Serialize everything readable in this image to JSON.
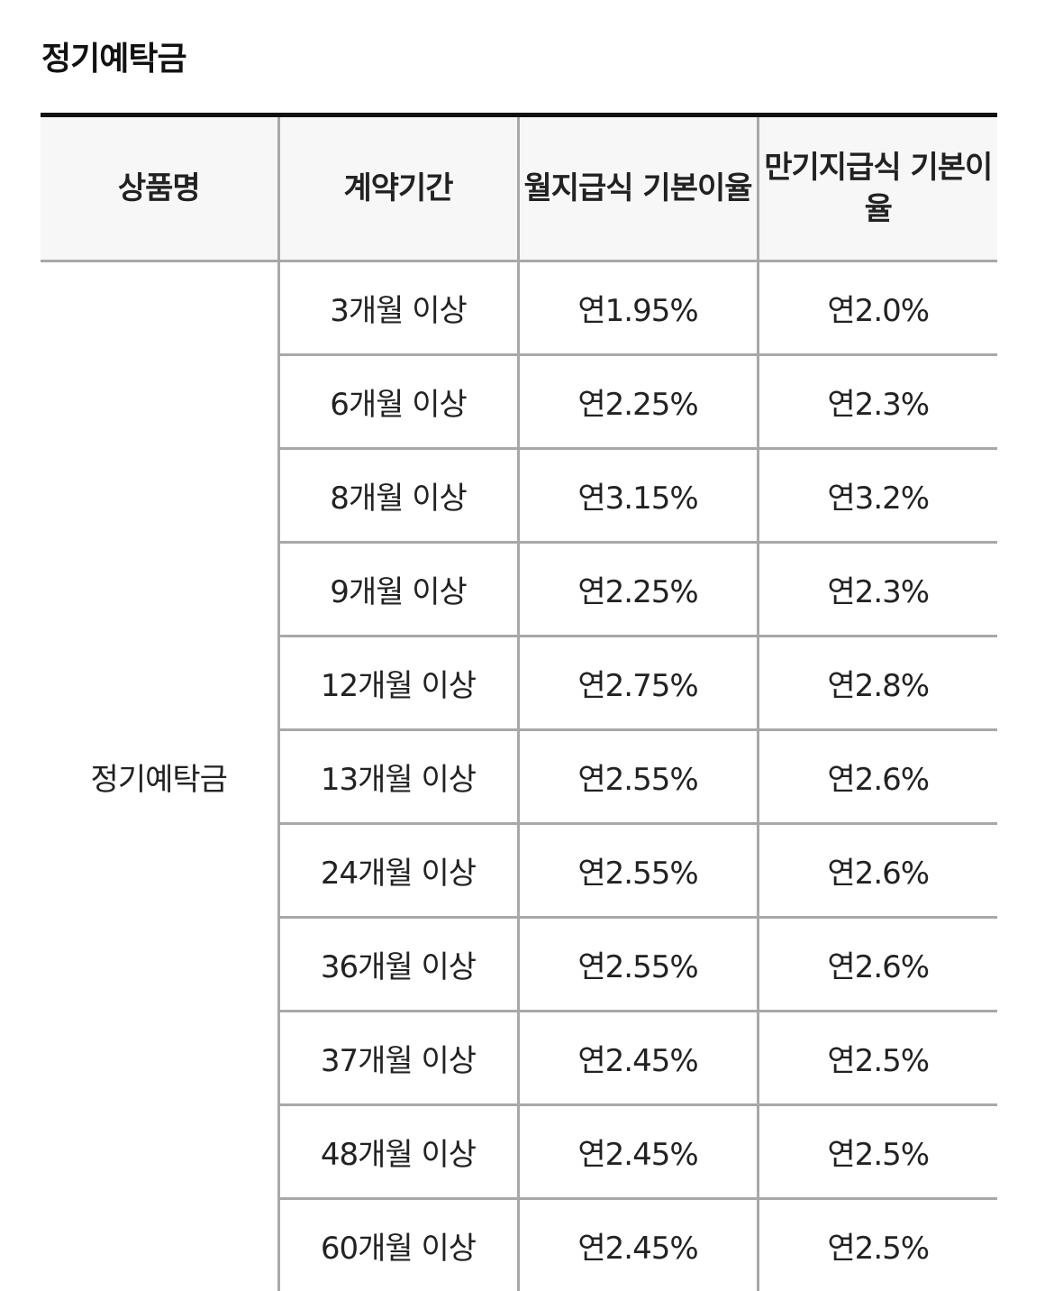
{
  "section": {
    "title": "정기예탁금"
  },
  "table": {
    "headers": [
      "상품명",
      "계약기간",
      "월지급식 기본이율",
      "만기지급식 기본이율"
    ],
    "product_name": "정기예탁금",
    "rows": [
      {
        "period": "3개월 이상",
        "monthly_rate": "연1.95%",
        "maturity_rate": "연2.0%"
      },
      {
        "period": "6개월 이상",
        "monthly_rate": "연2.25%",
        "maturity_rate": "연2.3%"
      },
      {
        "period": "8개월 이상",
        "monthly_rate": "연3.15%",
        "maturity_rate": "연3.2%"
      },
      {
        "period": "9개월 이상",
        "monthly_rate": "연2.25%",
        "maturity_rate": "연2.3%"
      },
      {
        "period": "12개월 이상",
        "monthly_rate": "연2.75%",
        "maturity_rate": "연2.8%"
      },
      {
        "period": "13개월 이상",
        "monthly_rate": "연2.55%",
        "maturity_rate": "연2.6%"
      },
      {
        "period": "24개월 이상",
        "monthly_rate": "연2.55%",
        "maturity_rate": "연2.6%"
      },
      {
        "period": "36개월 이상",
        "monthly_rate": "연2.55%",
        "maturity_rate": "연2.6%"
      },
      {
        "period": "37개월 이상",
        "monthly_rate": "연2.45%",
        "maturity_rate": "연2.5%"
      },
      {
        "period": "48개월 이상",
        "monthly_rate": "연2.45%",
        "maturity_rate": "연2.5%"
      },
      {
        "period": "60개월 이상",
        "monthly_rate": "연2.45%",
        "maturity_rate": "연2.5%"
      }
    ]
  }
}
